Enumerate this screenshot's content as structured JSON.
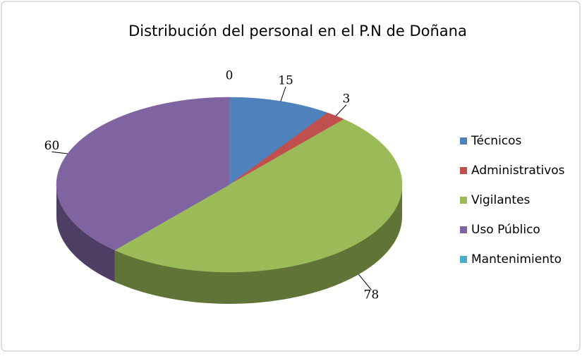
{
  "chart_data": {
    "type": "pie3d",
    "title": "Distribución del personal en el P.N de Doñana",
    "categories": [
      "Técnicos",
      "Administrativos",
      "Vigilantes",
      "Uso Público",
      "Mantenimiento"
    ],
    "values": [
      15,
      3,
      78,
      60,
      0
    ],
    "colors": [
      "#4f81bd",
      "#c0504d",
      "#9bbb59",
      "#8064a2",
      "#4bacc6"
    ],
    "legend": "right"
  }
}
